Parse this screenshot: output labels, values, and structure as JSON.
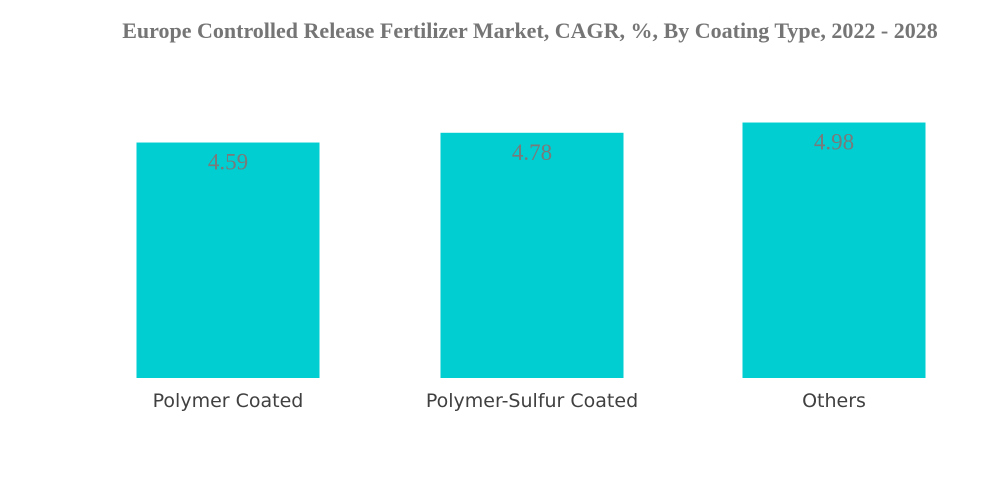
{
  "chart_data": {
    "type": "bar",
    "title": "Europe Controlled Release Fertilizer Market, CAGR, %, By Coating Type, 2022 - 2028",
    "categories": [
      "Polymer Coated",
      "Polymer-Sulfur Coated",
      "Others"
    ],
    "values": [
      4.59,
      4.78,
      4.98
    ],
    "bar_color": "#00CED1",
    "xlabel": "",
    "ylabel": "",
    "grid": false,
    "legend": "none"
  }
}
